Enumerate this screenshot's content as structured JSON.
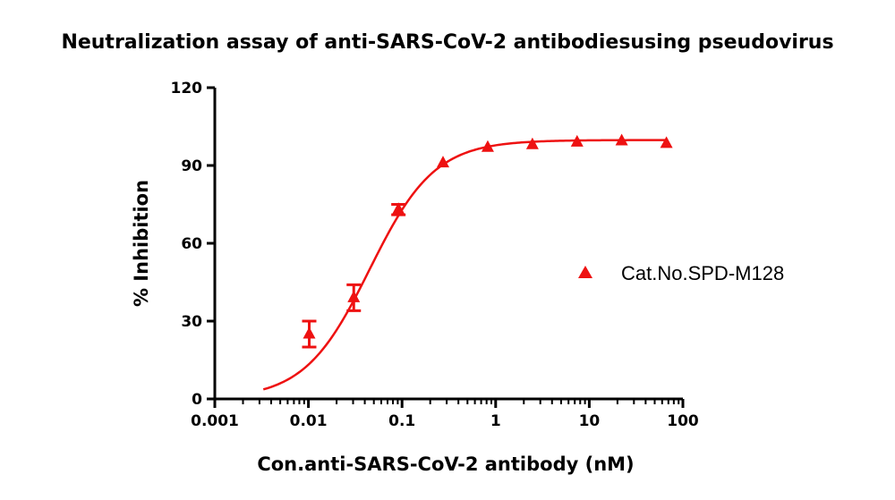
{
  "chart_data": {
    "type": "scatter",
    "title": "Neutralization assay of anti-SARS-CoV-2 antibodiesusing pseudovirus",
    "xlabel": "Con.anti-SARS-CoV-2 antibody (nM)",
    "ylabel": "% Inhibition",
    "x_scale": "log",
    "xlim": [
      0.001,
      100
    ],
    "ylim": [
      0,
      120
    ],
    "x_ticks": [
      0.001,
      0.01,
      0.1,
      1,
      10,
      100
    ],
    "x_tick_labels": [
      "0.001",
      "0.01",
      "0.1",
      "1",
      "10",
      "100"
    ],
    "y_ticks": [
      0,
      30,
      60,
      90,
      120
    ],
    "y_tick_labels": [
      "0",
      "30",
      "60",
      "90",
      "120"
    ],
    "grid": false,
    "legend": {
      "position": "right",
      "entries": [
        "Cat.No.SPD-M128"
      ]
    },
    "color": "#ee1111",
    "series": [
      {
        "name": "Cat.No.SPD-M128",
        "marker": "triangle",
        "x": [
          0.0102,
          0.0305,
          0.0915,
          0.274,
          0.823,
          2.47,
          7.41,
          22.2,
          66.7
        ],
        "y": [
          25,
          39,
          73,
          91,
          97,
          98,
          99,
          99.5,
          98.5
        ],
        "error": [
          5,
          5,
          2,
          0,
          0,
          0,
          0,
          0,
          0
        ]
      }
    ],
    "fit_curve": {
      "model": "four-parameter logistic",
      "bottom": 0,
      "top": 99.8,
      "ec50": 0.045,
      "hill": 1.25,
      "x_range": [
        0.0033,
        66.7
      ]
    }
  }
}
